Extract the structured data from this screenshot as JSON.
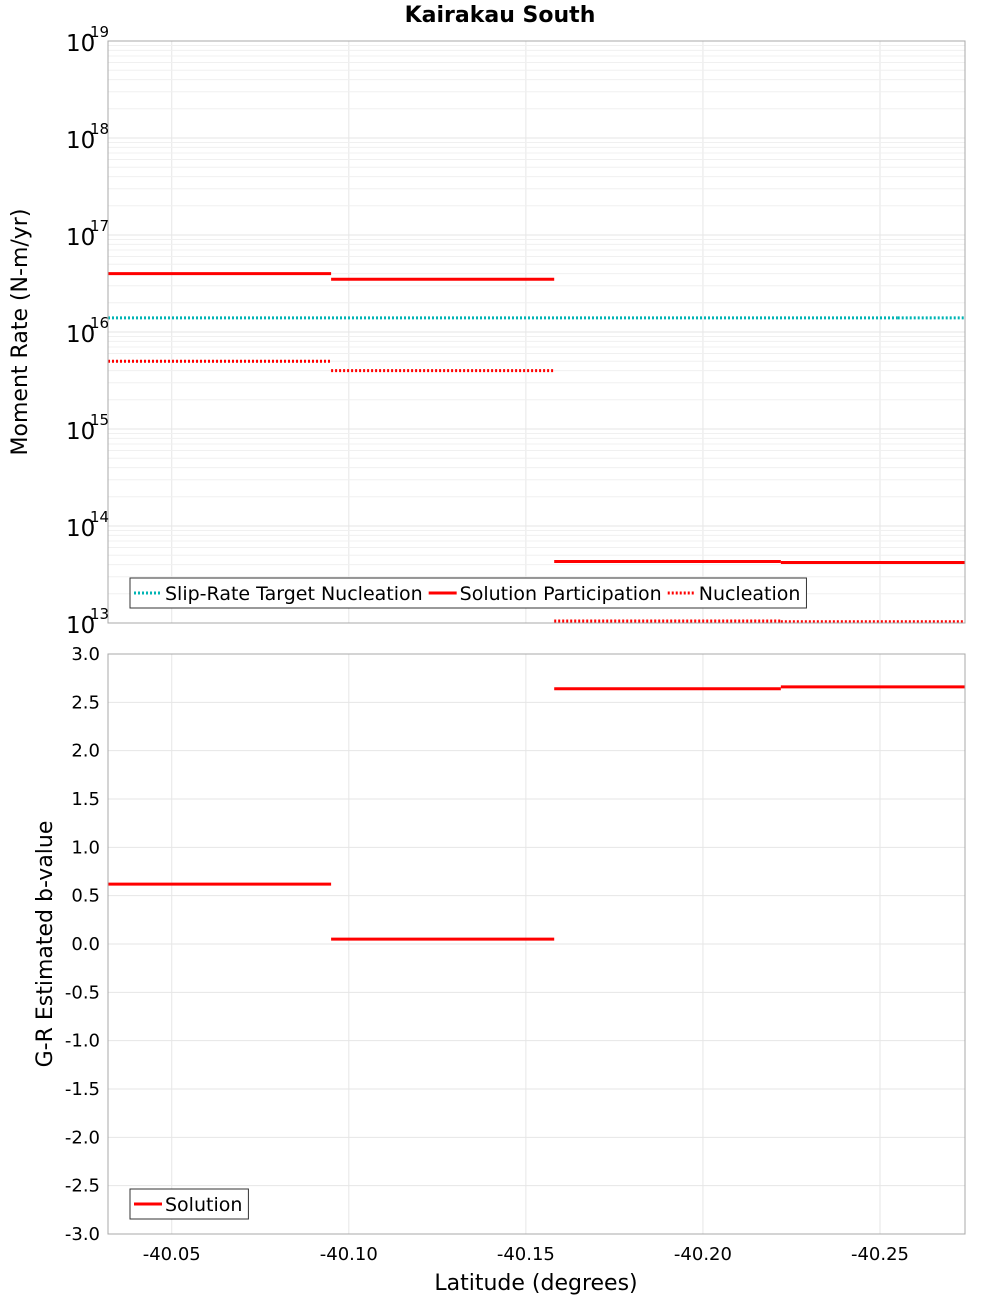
{
  "title": "Kairakau South",
  "colors": {
    "red": "#ff0000",
    "cyan": "#00b4b4",
    "grid": "#e6e6e6",
    "frame": "#a8a8a8"
  },
  "chart_data": [
    {
      "type": "line",
      "ylabel": "Moment Rate (N-m/yr)",
      "xlabel": "",
      "xlim": [
        -40.032,
        -40.274
      ],
      "yscale": "log",
      "ylim": [
        10000000000000.0,
        1e+19
      ],
      "y_tick_exponents": [
        "13",
        "14",
        "15",
        "16",
        "17",
        "18",
        "19"
      ],
      "y_tick_base": "10",
      "legend_position": "bottom-left",
      "series": [
        {
          "name": "Slip-Rate Target Nucleation",
          "style": "dotted",
          "color": "#00b4b4",
          "segments": [
            {
              "x": [
                -40.032,
                -40.255
              ],
              "y": 1.4e+16
            },
            {
              "x": [
                -40.255,
                -40.274
              ],
              "y": 1.4e+16
            }
          ]
        },
        {
          "name": "Solution Participation",
          "style": "solid",
          "color": "#ff0000",
          "segments": [
            {
              "x": [
                -40.032,
                -40.095
              ],
              "y": 4e+16
            },
            {
              "x": [
                -40.095,
                -40.158
              ],
              "y": 3.5e+16
            },
            {
              "x": [
                -40.158,
                -40.222
              ],
              "y": 43000000000000.0
            },
            {
              "x": [
                -40.222,
                -40.274
              ],
              "y": 42000000000000.0
            }
          ]
        },
        {
          "name": "Nucleation",
          "style": "dotted",
          "color": "#ff0000",
          "segments": [
            {
              "x": [
                -40.032,
                -40.095
              ],
              "y": 5000000000000000.0
            },
            {
              "x": [
                -40.095,
                -40.158
              ],
              "y": 4000000000000000.0
            },
            {
              "x": [
                -40.158,
                -40.222
              ],
              "y": 10500000000000.0
            },
            {
              "x": [
                -40.222,
                -40.274
              ],
              "y": 10300000000000.0
            }
          ]
        }
      ]
    },
    {
      "type": "line",
      "ylabel": "G-R Estimated b-value",
      "xlabel": "Latitude (degrees)",
      "xlim": [
        -40.032,
        -40.274
      ],
      "ylim": [
        -3.0,
        3.0
      ],
      "y_ticks": [
        "3.0",
        "2.5",
        "2.0",
        "1.5",
        "1.0",
        "0.5",
        "0.0",
        "-0.5",
        "-1.0",
        "-1.5",
        "-2.0",
        "-2.5",
        "-3.0"
      ],
      "x_ticks": [
        "-40.05",
        "-40.10",
        "-40.15",
        "-40.20",
        "-40.25"
      ],
      "legend_position": "bottom-left",
      "series": [
        {
          "name": "Solution",
          "style": "solid",
          "color": "#ff0000",
          "segments": [
            {
              "x": [
                -40.032,
                -40.095
              ],
              "y": 0.62
            },
            {
              "x": [
                -40.095,
                -40.158
              ],
              "y": 0.05
            },
            {
              "x": [
                -40.158,
                -40.222
              ],
              "y": 2.64
            },
            {
              "x": [
                -40.222,
                -40.274
              ],
              "y": 2.66
            }
          ]
        }
      ]
    }
  ]
}
